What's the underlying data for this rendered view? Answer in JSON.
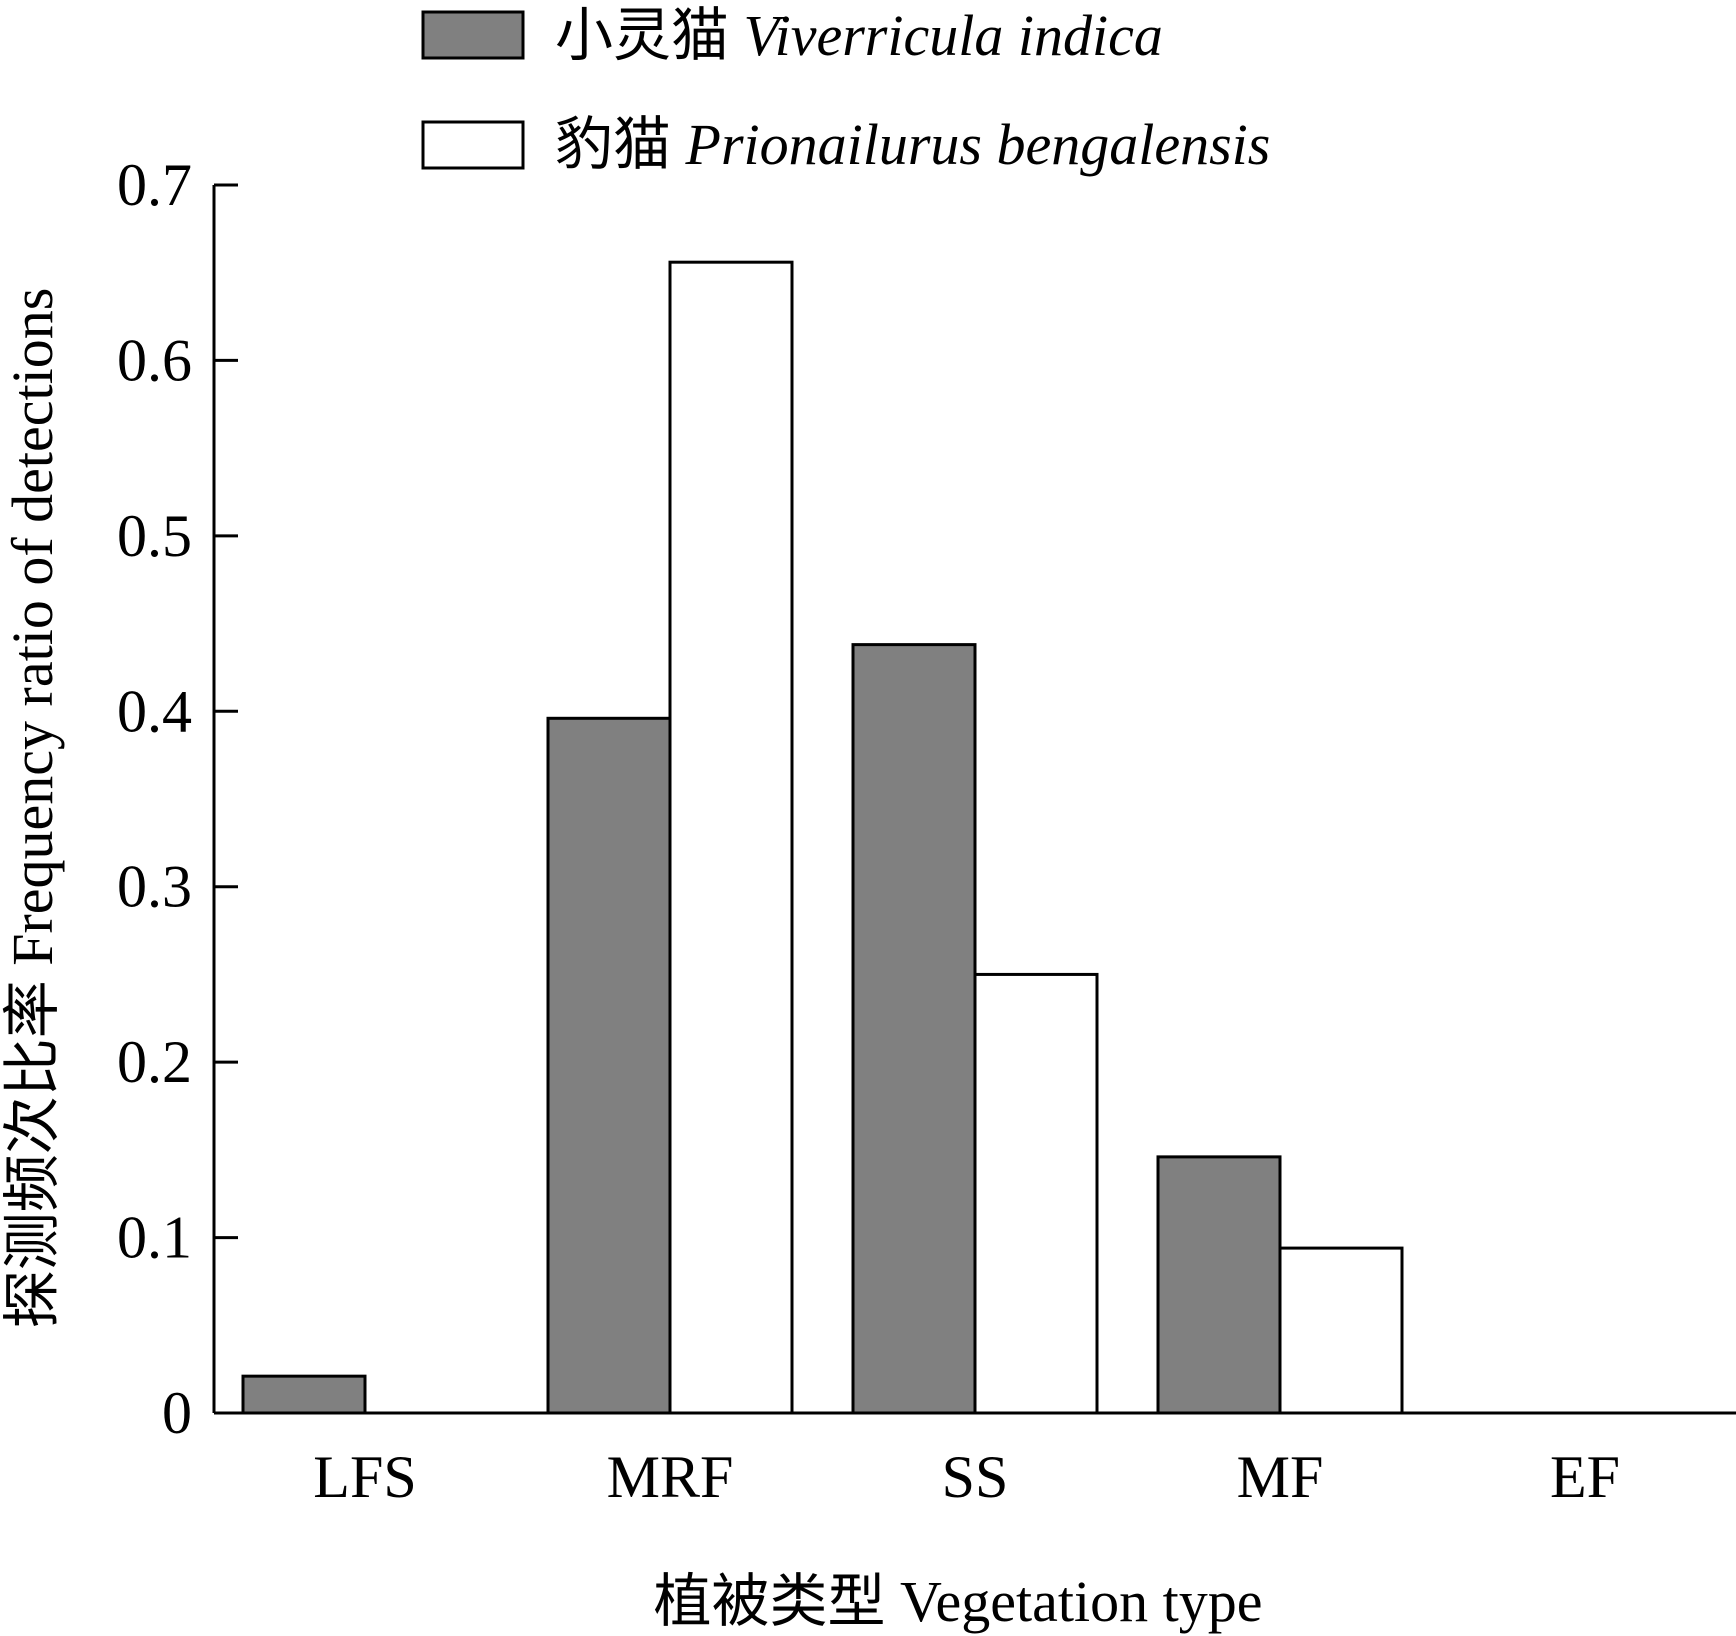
{
  "chart_data": {
    "type": "bar",
    "categories": [
      "LFS",
      "MRF",
      "SS",
      "MF",
      "EF"
    ],
    "series": [
      {
        "name": "小灵猫",
        "sci_name": "Viverricula indica",
        "color": "#808080",
        "values": [
          0.021,
          0.396,
          0.438,
          0.146,
          0
        ]
      },
      {
        "name": "豹猫",
        "sci_name": "Prionailurus bengalensis",
        "color": "#ffffff",
        "values": [
          0,
          0.656,
          0.25,
          0.094,
          0
        ]
      }
    ],
    "xlabel": "植被类型 Vegetation type",
    "ylabel": "探测频次比率 Frequency ratio of detections",
    "ylim": [
      0,
      0.7
    ],
    "yticks": [
      0,
      0.1,
      0.2,
      0.3,
      0.4,
      0.5,
      0.6,
      0.7
    ],
    "ytick_labels": [
      "0",
      "0.1",
      "0.2",
      "0.3",
      "0.4",
      "0.5",
      "0.6",
      "0.7"
    ],
    "legend_position": "top"
  }
}
